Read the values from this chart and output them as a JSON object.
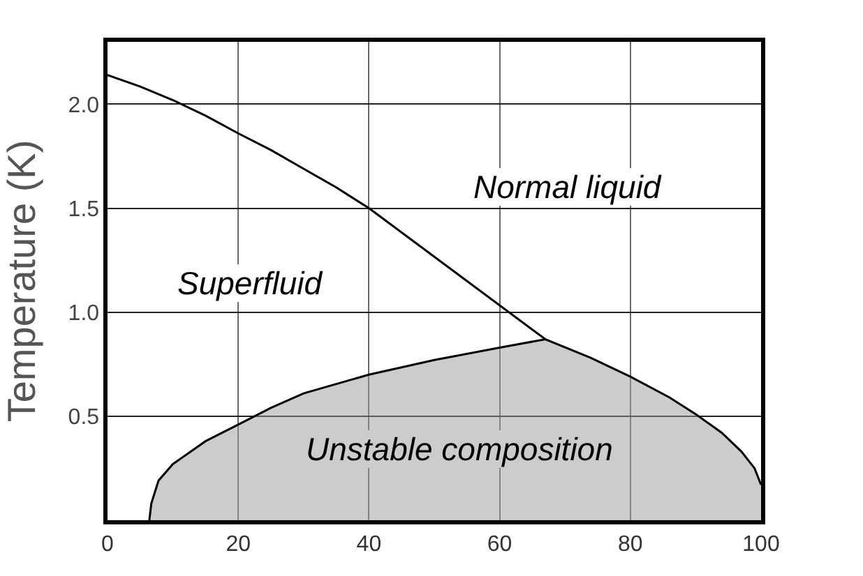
{
  "chart_data": {
    "type": "line",
    "ylabel": "Temperature (K)",
    "xlim": [
      0,
      100
    ],
    "xticks": [
      0,
      20,
      40,
      60,
      80,
      100
    ],
    "ylim": [
      0,
      2.3
    ],
    "yticks": [
      0.5,
      {
        "value": 1,
        "label": "1.0"
      },
      1.5,
      {
        "value": 2,
        "label": "2.0"
      }
    ],
    "grid": true,
    "legend": false,
    "marker": "none",
    "line_style": "solid",
    "series": [
      {
        "color": "#000000",
        "x": [
          0,
          5,
          10,
          15,
          20,
          25,
          30,
          35,
          40,
          67
        ],
        "values": [
          2.14,
          2.085,
          2.02,
          1.945,
          1.86,
          1.78,
          1.69,
          1.6,
          1.5,
          0.87
        ]
      },
      {
        "type": "area",
        "color": "#cccccc",
        "x": [
          6.4,
          6.7,
          7.8,
          10,
          15,
          20,
          25,
          30,
          40,
          50,
          60,
          67,
          74,
          80,
          86,
          90,
          94,
          97,
          99,
          100
        ],
        "values": [
          0,
          0.08,
          0.19,
          0.27,
          0.38,
          0.46,
          0.54,
          0.61,
          0.7,
          0.77,
          0.83,
          0.87,
          0.78,
          0.69,
          0.59,
          0.51,
          0.42,
          0.33,
          0.25,
          0.17
        ]
      }
    ],
    "annotations": [
      "Normal liquid",
      "Superfluid",
      "Unstable composition"
    ]
  }
}
